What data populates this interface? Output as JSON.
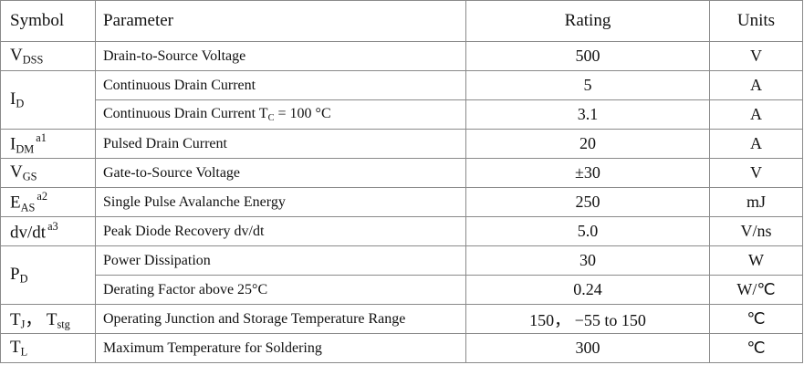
{
  "table": {
    "header": [
      "Symbol",
      "Parameter",
      "Rating",
      "Units"
    ],
    "groups": [
      {
        "symbol": [
          {
            "t": "V"
          },
          {
            "sub": "DSS"
          }
        ],
        "items": [
          {
            "parameter": "Drain-to-Source Voltage",
            "rating": "500",
            "units": "V"
          }
        ]
      },
      {
        "symbol": [
          {
            "t": "I"
          },
          {
            "sub": "D"
          }
        ],
        "items": [
          {
            "parameter": "Continuous Drain Current",
            "rating": "5",
            "units": "A"
          },
          {
            "parameter": [
              {
                "t": "Continuous Drain Current T"
              },
              {
                "sub": "C"
              },
              {
                "t": " = 100 °C"
              }
            ],
            "rating": "3.1",
            "units": "A"
          }
        ]
      },
      {
        "symbol": [
          {
            "t": "I"
          },
          {
            "sub": "DM"
          },
          {
            "sup": "a1"
          }
        ],
        "items": [
          {
            "parameter": "Pulsed Drain Current",
            "rating": "20",
            "units": "A"
          }
        ]
      },
      {
        "symbol": [
          {
            "t": "V"
          },
          {
            "sub": "GS"
          }
        ],
        "items": [
          {
            "parameter": "Gate-to-Source Voltage",
            "rating": "±30",
            "units": "V"
          }
        ]
      },
      {
        "symbol": [
          {
            "t": "E"
          },
          {
            "sub": "AS"
          },
          {
            "sup": "a2"
          }
        ],
        "items": [
          {
            "parameter": "Single Pulse Avalanche Energy",
            "rating": "250",
            "units": "mJ"
          }
        ]
      },
      {
        "symbol": [
          {
            "t": "dv/dt"
          },
          {
            "sup": "a3"
          }
        ],
        "items": [
          {
            "parameter": "Peak Diode Recovery dv/dt",
            "rating": "5.0",
            "units": "V/ns"
          }
        ]
      },
      {
        "symbol": [
          {
            "t": "P"
          },
          {
            "sub": "D"
          }
        ],
        "items": [
          {
            "parameter": "Power Dissipation",
            "rating": "30",
            "units": "W"
          },
          {
            "parameter": "Derating Factor above 25°C",
            "rating": "0.24",
            "units": "W/℃"
          }
        ]
      },
      {
        "symbol": [
          {
            "t": "T"
          },
          {
            "sub": "J"
          },
          {
            "t": "， T"
          },
          {
            "sub": "stg"
          }
        ],
        "items": [
          {
            "parameter": "Operating Junction and Storage Temperature Range",
            "rating": "150， −55 to 150",
            "units": "℃"
          }
        ]
      },
      {
        "symbol": [
          {
            "t": "T"
          },
          {
            "sub": "L"
          }
        ],
        "items": [
          {
            "parameter": "Maximum Temperature for Soldering",
            "rating": "300",
            "units": "℃"
          }
        ]
      }
    ]
  }
}
